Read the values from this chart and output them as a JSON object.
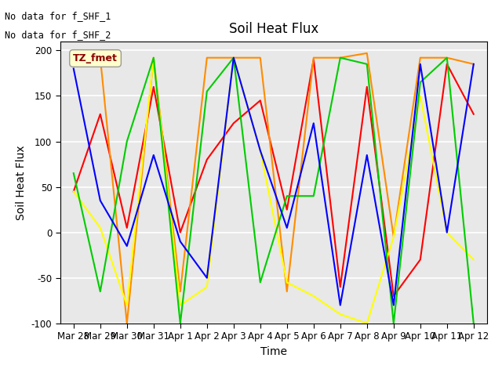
{
  "title": "Soil Heat Flux",
  "xlabel": "Time",
  "ylabel": "Soil Heat Flux",
  "ylim": [
    -100,
    210
  ],
  "yticks": [
    -100,
    -50,
    0,
    50,
    100,
    150,
    200
  ],
  "xtick_labels": [
    "Mar 28",
    "Mar 29",
    "Mar 30",
    "Mar 31",
    "Apr 1",
    "Apr 2",
    "Apr 3",
    "Apr 4",
    "Apr 5",
    "Apr 6",
    "Apr 7",
    "Apr 8",
    "Apr 9",
    "Apr 10",
    "Apr 11",
    "Apr 12"
  ],
  "xtick_positions": [
    0,
    1,
    2,
    3,
    4,
    5,
    6,
    7,
    8,
    9,
    10,
    11,
    12,
    13,
    14,
    15
  ],
  "text_no_data": [
    "No data for f_SHF_1",
    "No data for f_SHF_2"
  ],
  "legend_label": "TZ_fmet",
  "series": {
    "SHF1": {
      "color": "#ff0000",
      "x": [
        0,
        1,
        2,
        3,
        4,
        5,
        6,
        7,
        8,
        9,
        10,
        11,
        12,
        13,
        14,
        15
      ],
      "y": [
        45,
        130,
        5,
        160,
        0,
        80,
        120,
        145,
        25,
        190,
        -60,
        160,
        -70,
        -30,
        185,
        130
      ]
    },
    "SHF2": {
      "color": "#ff8c00",
      "x": [
        0,
        1,
        2,
        3,
        4,
        5,
        6,
        7,
        8,
        9,
        10,
        11,
        12,
        13,
        14,
        15
      ],
      "y": [
        185,
        192,
        -100,
        192,
        -65,
        192,
        192,
        192,
        -65,
        192,
        192,
        197,
        -5,
        192,
        192,
        185
      ]
    },
    "SHF3": {
      "color": "#ffff00",
      "x": [
        0,
        1,
        2,
        3,
        4,
        5,
        6,
        7,
        8,
        9,
        10,
        11,
        12,
        13,
        14,
        15
      ],
      "y": [
        45,
        5,
        -80,
        192,
        -80,
        -60,
        192,
        90,
        -55,
        -70,
        -90,
        -100,
        -5,
        150,
        0,
        -30
      ]
    },
    "SHF4": {
      "color": "#00cc00",
      "x": [
        0,
        1,
        2,
        3,
        4,
        5,
        6,
        7,
        8,
        9,
        10,
        11,
        12,
        13,
        14,
        15
      ],
      "y": [
        65,
        -65,
        100,
        192,
        -100,
        155,
        192,
        -55,
        40,
        40,
        192,
        185,
        -100,
        165,
        192,
        -100
      ]
    },
    "SHF5": {
      "color": "#0000ff",
      "x": [
        0,
        1,
        2,
        3,
        4,
        5,
        6,
        7,
        8,
        9,
        10,
        11,
        12,
        13,
        14,
        15
      ],
      "y": [
        180,
        35,
        -15,
        85,
        -10,
        -50,
        192,
        90,
        5,
        120,
        -80,
        85,
        -80,
        185,
        0,
        185
      ]
    }
  },
  "bg_color": "#e8e8e8",
  "grid_color": "#ffffff",
  "title_fontsize": 12,
  "axis_label_fontsize": 10,
  "tick_fontsize": 8.5
}
